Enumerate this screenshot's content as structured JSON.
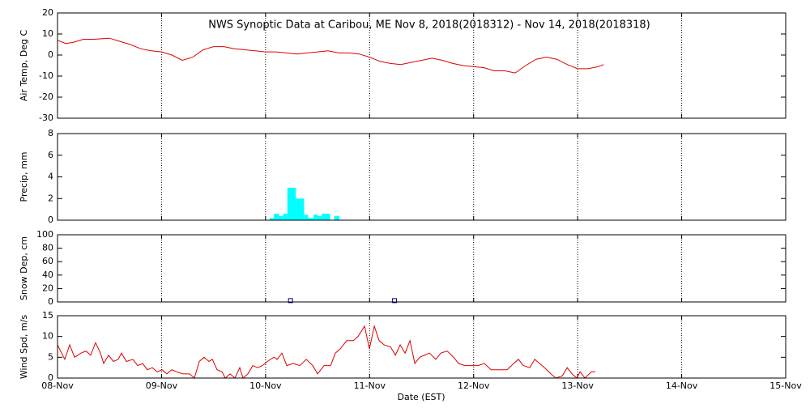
{
  "chart_data": [
    {
      "type": "line",
      "title": "NWS Synoptic Data at Caribou, ME   Nov  8, 2018(2018312) - Nov 14, 2018(2018318)",
      "ylabel": "Air Temp, Deg C",
      "color": "#dd0000",
      "ylim": [
        -30,
        20
      ],
      "yticks": [
        -30,
        -20,
        -10,
        0,
        10,
        20
      ],
      "x": [
        0,
        0.08,
        0.15,
        0.25,
        0.35,
        0.5,
        0.6,
        0.7,
        0.8,
        0.9,
        1.0,
        1.1,
        1.2,
        1.3,
        1.4,
        1.5,
        1.6,
        1.7,
        1.8,
        1.9,
        2.0,
        2.1,
        2.2,
        2.3,
        2.4,
        2.5,
        2.6,
        2.7,
        2.8,
        2.9,
        3.0,
        3.1,
        3.2,
        3.3,
        3.4,
        3.5,
        3.6,
        3.7,
        3.8,
        3.9,
        4.0,
        4.1,
        4.2,
        4.3,
        4.4,
        4.5,
        4.6,
        4.7,
        4.8,
        4.9,
        5.0,
        5.1,
        5.2,
        5.25
      ],
      "values": [
        7,
        5.5,
        6,
        7.5,
        7.5,
        8,
        6.5,
        5,
        3,
        2,
        1.5,
        0,
        -2.5,
        -1,
        2.5,
        4,
        4,
        3,
        2.5,
        2,
        1.5,
        1.5,
        1,
        0.5,
        1,
        1.5,
        2,
        1,
        1,
        0.5,
        -1,
        -3,
        -4,
        -4.5,
        -3.5,
        -2.5,
        -1.5,
        -2.5,
        -4,
        -5,
        -5.5,
        -6,
        -7.5,
        -7.5,
        -8.5,
        -5,
        -2,
        -1,
        -2,
        -4.5,
        -6.5,
        -6.5,
        -5.5,
        -4.5
      ]
    },
    {
      "type": "histogram",
      "ylabel": "Precip, mm",
      "color": "#00ffff",
      "ylim": [
        0,
        8
      ],
      "yticks": [
        0,
        2,
        4,
        6,
        8
      ],
      "bins": [
        2.04,
        2.08,
        2.13,
        2.17,
        2.21,
        2.29,
        2.37,
        2.41,
        2.46,
        2.5,
        2.54,
        2.62,
        2.66,
        2.71
      ],
      "values": [
        0.2,
        0.6,
        0.4,
        0.6,
        3.0,
        2.0,
        0.5,
        0.2,
        0.5,
        0.4,
        0.6,
        0,
        0.4
      ]
    },
    {
      "type": "scatter",
      "ylabel": "Snow Dep, cm",
      "color": "#000080",
      "ylim": [
        0,
        100
      ],
      "yticks": [
        0,
        20,
        40,
        60,
        80,
        100
      ],
      "x": [
        2.24,
        3.24
      ],
      "values": [
        2,
        2
      ]
    },
    {
      "type": "line",
      "ylabel": "Wind Spd, m/s",
      "xlabel": "Date (EST)",
      "color": "#dd0000",
      "ylim": [
        0,
        15
      ],
      "yticks": [
        0,
        5,
        10,
        15
      ],
      "xlim": [
        0,
        7
      ],
      "xticks": [
        {
          "value": 0,
          "label": "08-Nov"
        },
        {
          "value": 1,
          "label": "09-Nov"
        },
        {
          "value": 2,
          "label": "10-Nov"
        },
        {
          "value": 3,
          "label": "11-Nov"
        },
        {
          "value": 4,
          "label": "12-Nov"
        },
        {
          "value": 5,
          "label": "13-Nov"
        },
        {
          "value": 6,
          "label": "14-Nov"
        },
        {
          "value": 7,
          "label": "15-Nov"
        }
      ],
      "x": [
        0,
        0.039,
        0.07,
        0.117,
        0.164,
        0.226,
        0.273,
        0.319,
        0.366,
        0.413,
        0.444,
        0.491,
        0.537,
        0.584,
        0.615,
        0.662,
        0.724,
        0.771,
        0.818,
        0.864,
        0.911,
        0.958,
        1.005,
        1.051,
        1.098,
        1.145,
        1.207,
        1.269,
        1.316,
        1.363,
        1.41,
        1.456,
        1.488,
        1.534,
        1.581,
        1.612,
        1.659,
        1.706,
        1.752,
        1.783,
        1.83,
        1.877,
        1.924,
        1.97,
        2.017,
        2.079,
        2.111,
        2.157,
        2.204,
        2.266,
        2.329,
        2.391,
        2.453,
        2.5,
        2.562,
        2.625,
        2.671,
        2.718,
        2.78,
        2.843,
        2.889,
        2.952,
        2.998,
        3.045,
        3.092,
        3.139,
        3.201,
        3.248,
        3.294,
        3.341,
        3.388,
        3.435,
        3.481,
        3.528,
        3.575,
        3.637,
        3.684,
        3.746,
        3.808,
        3.855,
        3.918,
        3.98,
        4.042,
        4.104,
        4.167,
        4.245,
        4.322,
        4.385,
        4.431,
        4.478,
        4.54,
        4.587,
        4.634,
        4.681,
        4.743,
        4.79,
        4.852,
        4.899,
        4.946,
        4.992,
        5.023,
        5.07,
        5.132,
        5.171
      ],
      "values": [
        8,
        6,
        4.5,
        8,
        5,
        6,
        6.5,
        5.5,
        8.5,
        6,
        3.5,
        5.5,
        4,
        4.5,
        6,
        4,
        4.5,
        3,
        3.5,
        2,
        2.5,
        1.5,
        2,
        1,
        2,
        1.5,
        1,
        1,
        0,
        4,
        5,
        4,
        4.5,
        2,
        1.5,
        0,
        1,
        0,
        2.5,
        0,
        1,
        3,
        2.5,
        3,
        4,
        5,
        4.5,
        6,
        3,
        3.5,
        3,
        4.5,
        3,
        1,
        3,
        3,
        6,
        7,
        9,
        9,
        10,
        12.5,
        7,
        12.5,
        9,
        8,
        7.5,
        5.5,
        8,
        6,
        9,
        3.5,
        5,
        5.5,
        6,
        4.5,
        6,
        6.5,
        5,
        3.5,
        3,
        3,
        3,
        3.5,
        2,
        2,
        2,
        3.5,
        4.5,
        3,
        2.5,
        4.5,
        3.5,
        2.5,
        1,
        0,
        0.5,
        2.5,
        1,
        0,
        1.5,
        0,
        1.5,
        1.5
      ]
    }
  ]
}
